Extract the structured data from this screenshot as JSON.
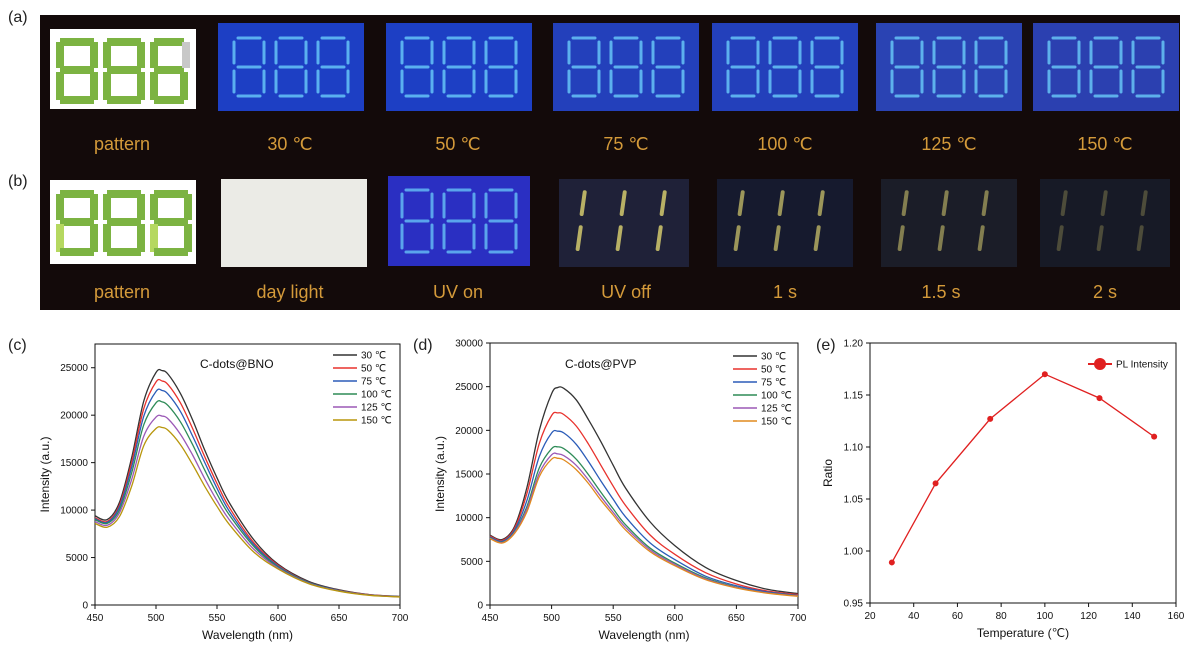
{
  "photo_panels": {
    "a": {
      "label": "(a)",
      "captions": [
        "pattern",
        "30 ℃",
        "50 ℃",
        "75 ℃",
        "100 ℃",
        "125 ℃",
        "150 ℃"
      ]
    },
    "b": {
      "label": "(b)",
      "captions": [
        "pattern",
        "day light",
        "UV on",
        "UV off",
        "1 s",
        "1.5 s",
        "2 s"
      ]
    }
  },
  "chart_data": [
    {
      "type": "line",
      "panel_label": "(c)",
      "annotation": "C-dots@BNO",
      "xlabel": "Wavelength (nm)",
      "ylabel": "Intensity (a.u.)",
      "xlim": [
        450,
        700
      ],
      "ylim": [
        0,
        27500
      ],
      "xticks": [
        450,
        500,
        550,
        600,
        650,
        700
      ],
      "yticks": [
        0,
        5000,
        10000,
        15000,
        20000,
        25000
      ],
      "legend_position": "top-right",
      "x": [
        450,
        460,
        470,
        480,
        490,
        500,
        505,
        510,
        520,
        530,
        540,
        550,
        560,
        580,
        600,
        625,
        650,
        675,
        700
      ],
      "series": [
        {
          "name": "30 ℃",
          "color": "#333333",
          "values": [
            9400,
            9000,
            10800,
            15500,
            21500,
            24500,
            24700,
            24300,
            22300,
            19500,
            16300,
            13400,
            10800,
            6900,
            4300,
            2500,
            1600,
            1100,
            900
          ]
        },
        {
          "name": "50 ℃",
          "color": "#e8322d",
          "values": [
            9200,
            8800,
            10500,
            15000,
            20700,
            23500,
            23600,
            23200,
            21300,
            18600,
            15600,
            12800,
            10300,
            6600,
            4200,
            2400,
            1550,
            1080,
            880
          ]
        },
        {
          "name": "75 ℃",
          "color": "#2b5cb8",
          "values": [
            9100,
            8700,
            10300,
            14500,
            19900,
            22500,
            22600,
            22200,
            20400,
            17800,
            15000,
            12300,
            9900,
            6400,
            4100,
            2380,
            1530,
            1060,
            870
          ]
        },
        {
          "name": "100 ℃",
          "color": "#2e8b57",
          "values": [
            9000,
            8600,
            10000,
            13900,
            19000,
            21300,
            21400,
            21000,
            19300,
            16900,
            14200,
            11700,
            9500,
            6200,
            4000,
            2350,
            1500,
            1050,
            860
          ]
        },
        {
          "name": "125 ℃",
          "color": "#9b59b6",
          "values": [
            8800,
            8400,
            9700,
            13200,
            17800,
            19800,
            19900,
            19600,
            18000,
            15800,
            13300,
            11000,
            9000,
            5900,
            3900,
            2300,
            1480,
            1040,
            850
          ]
        },
        {
          "name": "150 ℃",
          "color": "#b8960c",
          "values": [
            8600,
            8200,
            9300,
            12500,
            16800,
            18600,
            18700,
            18400,
            16900,
            14800,
            12500,
            10400,
            8500,
            5600,
            3800,
            2250,
            1450,
            1020,
            840
          ]
        }
      ]
    },
    {
      "type": "line",
      "panel_label": "(d)",
      "annotation": "C-dots@PVP",
      "xlabel": "Wavelength (nm)",
      "ylabel": "Intensity (a.u.)",
      "xlim": [
        450,
        700
      ],
      "ylim": [
        0,
        30000
      ],
      "xticks": [
        450,
        500,
        550,
        600,
        650,
        700
      ],
      "yticks": [
        0,
        5000,
        10000,
        15000,
        20000,
        25000,
        30000
      ],
      "legend_position": "top-right",
      "x": [
        450,
        460,
        470,
        480,
        490,
        500,
        505,
        510,
        520,
        530,
        540,
        550,
        560,
        580,
        600,
        625,
        650,
        675,
        700
      ],
      "series": [
        {
          "name": "30 ℃",
          "color": "#333333",
          "values": [
            8000,
            7500,
            9000,
            13500,
            20000,
            24200,
            24900,
            24800,
            23500,
            21200,
            18700,
            16000,
            13400,
            9500,
            6800,
            4300,
            2800,
            1800,
            1300
          ]
        },
        {
          "name": "50 ℃",
          "color": "#e8322d",
          "values": [
            7900,
            7400,
            8800,
            12800,
            18500,
            21700,
            22000,
            21800,
            20500,
            18400,
            16000,
            13600,
            11400,
            8000,
            5800,
            3700,
            2400,
            1600,
            1200
          ]
        },
        {
          "name": "75 ℃",
          "color": "#2b5cb8",
          "values": [
            7800,
            7300,
            8600,
            12000,
            17000,
            19700,
            19900,
            19700,
            18400,
            16400,
            14200,
            12100,
            10100,
            7100,
            5200,
            3300,
            2200,
            1500,
            1100
          ]
        },
        {
          "name": "100 ℃",
          "color": "#2e8b57",
          "values": [
            7700,
            7200,
            8400,
            11300,
            15700,
            17900,
            18100,
            17900,
            16700,
            14900,
            12900,
            11000,
            9200,
            6500,
            4800,
            3100,
            2050,
            1400,
            1050
          ]
        },
        {
          "name": "125 ℃",
          "color": "#9b59b6",
          "values": [
            7650,
            7150,
            8300,
            11000,
            15100,
            17200,
            17300,
            17100,
            16000,
            14300,
            12400,
            10600,
            8900,
            6300,
            4650,
            3000,
            2000,
            1380,
            1030
          ]
        },
        {
          "name": "150 ℃",
          "color": "#e08a1e",
          "values": [
            7600,
            7100,
            8200,
            10700,
            14700,
            16700,
            16800,
            16600,
            15500,
            13900,
            12000,
            10300,
            8600,
            6100,
            4500,
            2900,
            1950,
            1350,
            1000
          ]
        }
      ]
    },
    {
      "type": "line",
      "panel_label": "(e)",
      "xlabel": "Temperature (℃)",
      "ylabel": "Ratio",
      "xlim": [
        20,
        160
      ],
      "ylim": [
        0.95,
        1.2
      ],
      "xticks": [
        20,
        40,
        60,
        80,
        100,
        120,
        140,
        160
      ],
      "yticks": [
        0.95,
        1.0,
        1.05,
        1.1,
        1.15,
        1.2
      ],
      "legend_position": "top-right",
      "x": [
        30,
        50,
        75,
        100,
        125,
        150
      ],
      "series": [
        {
          "name": "PL Intensity",
          "color": "#e02020",
          "values": [
            0.989,
            1.065,
            1.127,
            1.17,
            1.147,
            1.11
          ]
        }
      ]
    }
  ]
}
